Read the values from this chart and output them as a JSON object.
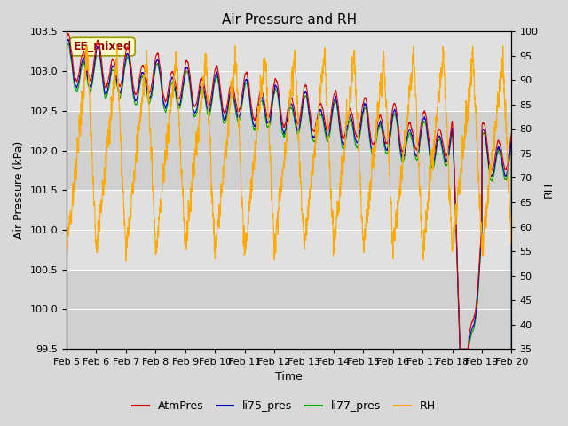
{
  "title": "Air Pressure and RH",
  "xlabel": "Time",
  "ylabel_left": "Air Pressure (kPa)",
  "ylabel_right": "RH",
  "annotation": "EE_mixed",
  "ylim_left": [
    99.5,
    103.5
  ],
  "ylim_right": [
    35,
    100
  ],
  "xtick_labels": [
    "Feb 5",
    "Feb 6",
    "Feb 7",
    "Feb 8",
    "Feb 9",
    "Feb 10",
    "Feb 11",
    "Feb 12",
    "Feb 13",
    "Feb 14",
    "Feb 15",
    "Feb 16",
    "Feb 17",
    "Feb 18",
    "Feb 19",
    "Feb 20"
  ],
  "line_colors": {
    "AtmPres": "#dd0000",
    "li75_pres": "#0000cc",
    "li77_pres": "#00aa00",
    "RH": "#ffaa00"
  },
  "line_widths": {
    "AtmPres": 0.8,
    "li75_pres": 0.8,
    "li77_pres": 0.8,
    "RH": 0.8
  },
  "bg_color": "#d8d8d8",
  "plot_bg_color": "#e8e8e8",
  "band_colors": [
    "#e0e0e0",
    "#d0d0d0"
  ],
  "title_fontsize": 11,
  "label_fontsize": 9,
  "tick_fontsize": 8,
  "legend_fontsize": 9,
  "annotation_facecolor": "#ffffcc",
  "annotation_edgecolor": "#999900",
  "annotation_textcolor": "#990000",
  "figsize": [
    6.4,
    4.8
  ],
  "dpi": 100
}
